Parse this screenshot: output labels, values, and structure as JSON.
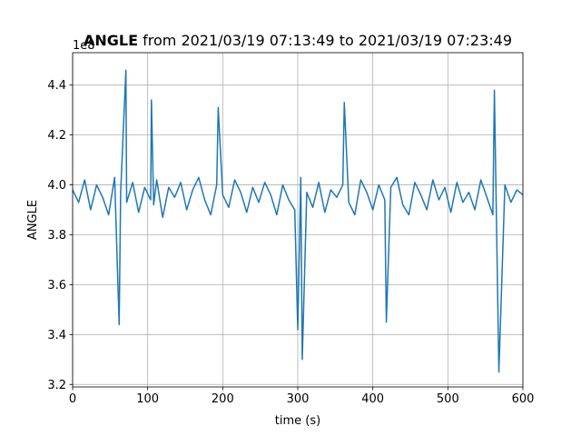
{
  "chart_data": {
    "type": "line",
    "title_bold": "ANGLE",
    "title_rest": " from 2021/03/19 07:13:49 to 2021/03/19 07:23:49",
    "xlabel": "time (s)",
    "ylabel": "ANGLE",
    "offset_label": "1e8",
    "xlim": [
      0,
      600
    ],
    "ylim": [
      3.19,
      4.53
    ],
    "xticks": [
      0,
      100,
      200,
      300,
      400,
      500,
      600
    ],
    "yticks": [
      3.2,
      3.4,
      3.6,
      3.8,
      4.0,
      4.2,
      4.4
    ],
    "grid": true,
    "line_color": "#1f77b4",
    "series": [
      {
        "x": [
          0,
          8,
          16,
          24,
          32,
          40,
          48,
          56,
          62,
          64,
          71,
          72,
          80,
          88,
          96,
          104,
          105,
          108,
          112,
          120,
          128,
          136,
          144,
          152,
          160,
          168,
          176,
          184,
          192,
          194,
          200,
          208,
          216,
          224,
          232,
          240,
          248,
          256,
          264,
          272,
          280,
          288,
          296,
          300,
          304,
          306,
          312,
          320,
          328,
          336,
          344,
          352,
          360,
          362,
          368,
          376,
          384,
          392,
          400,
          408,
          416,
          418,
          424,
          432,
          440,
          448,
          456,
          464,
          472,
          480,
          488,
          496,
          504,
          512,
          520,
          528,
          536,
          544,
          552,
          560,
          562,
          568,
          576,
          584,
          592,
          600
        ],
        "y": [
          3.98,
          3.93,
          4.02,
          3.9,
          4.0,
          3.95,
          3.88,
          4.03,
          3.44,
          3.97,
          4.46,
          3.93,
          4.01,
          3.89,
          3.99,
          3.94,
          4.34,
          3.92,
          4.02,
          3.87,
          3.99,
          3.95,
          4.01,
          3.9,
          3.98,
          4.03,
          3.94,
          3.88,
          4.0,
          4.31,
          3.96,
          3.91,
          4.02,
          3.97,
          3.89,
          3.99,
          3.93,
          4.01,
          3.96,
          3.88,
          4.0,
          3.94,
          3.9,
          3.42,
          4.03,
          3.3,
          3.97,
          3.91,
          4.01,
          3.89,
          3.98,
          3.95,
          4.0,
          4.33,
          3.93,
          3.88,
          4.02,
          3.97,
          3.9,
          4.0,
          3.94,
          3.45,
          3.99,
          4.03,
          3.92,
          3.88,
          4.01,
          3.96,
          3.9,
          4.02,
          3.94,
          3.99,
          3.89,
          4.01,
          3.93,
          3.97,
          3.9,
          4.02,
          3.95,
          3.88,
          4.38,
          3.25,
          4.0,
          3.93,
          3.98,
          3.96
        ]
      }
    ]
  }
}
